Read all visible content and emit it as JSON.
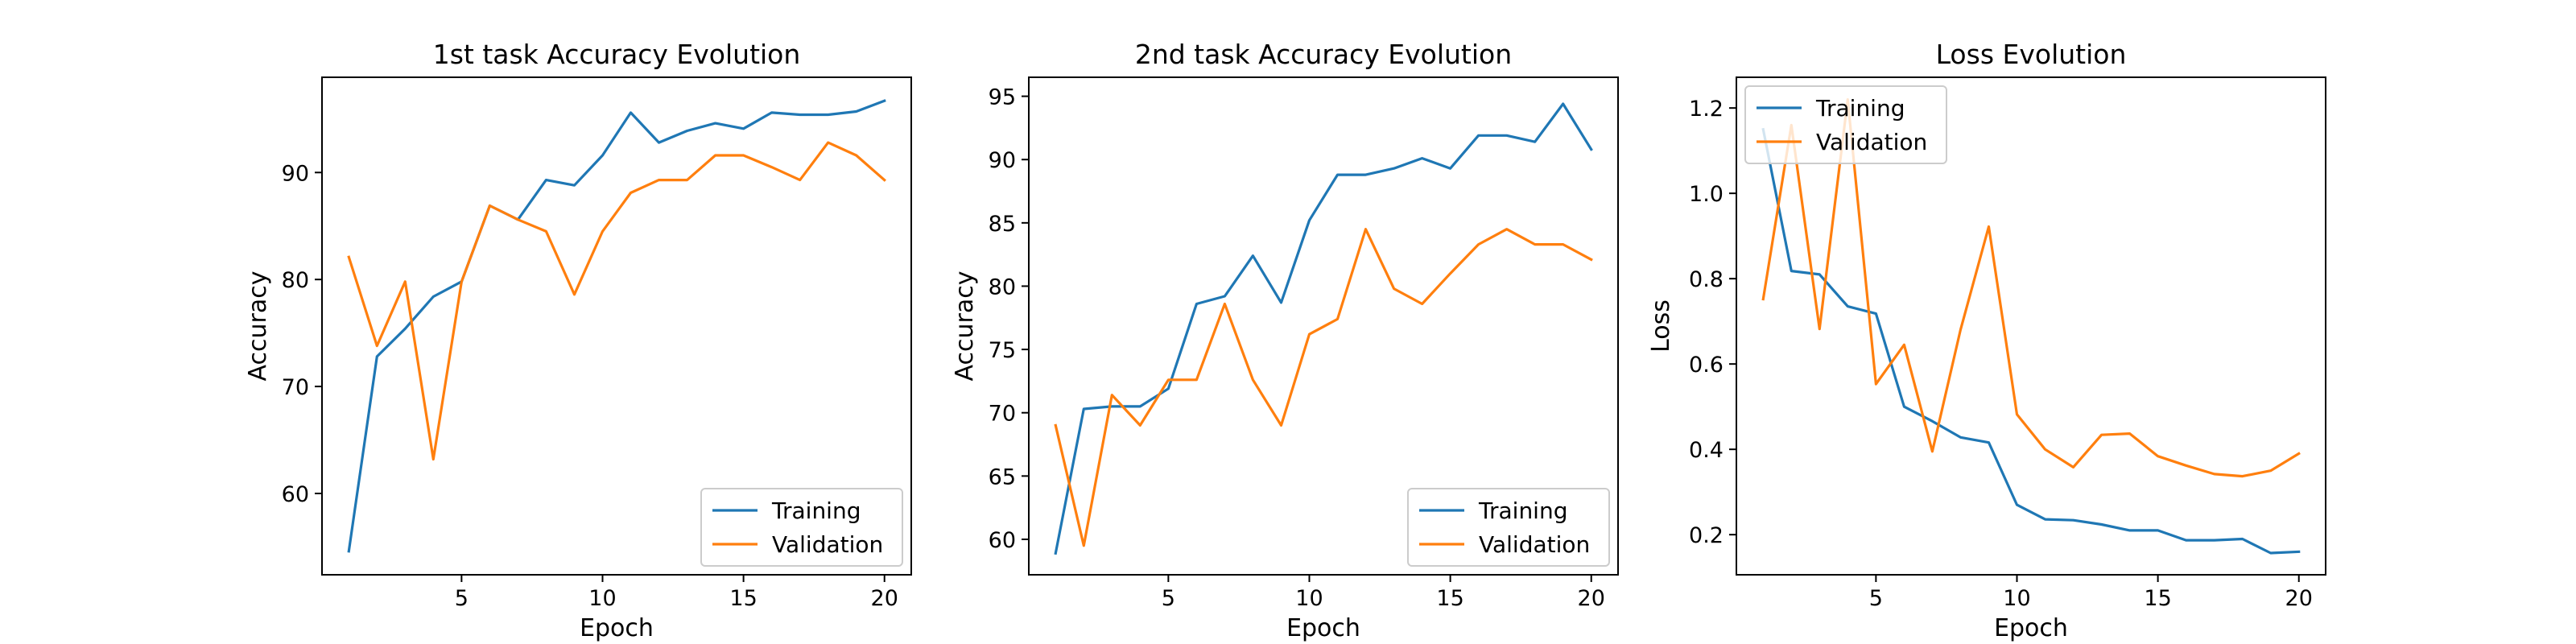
{
  "colors": {
    "training": "#1f77b4",
    "validation": "#ff7f0e"
  },
  "chart_data": [
    {
      "type": "line",
      "title": "1st task Accuracy Evolution",
      "xlabel": "Epoch",
      "ylabel": "Accuracy",
      "xlim": [
        0.05,
        20.95
      ],
      "ylim": [
        52.4,
        98.9
      ],
      "xticks": [
        5,
        10,
        15,
        20
      ],
      "yticks": [
        60,
        70,
        80,
        90
      ],
      "legend": "lower right",
      "x": [
        1,
        2,
        3,
        4,
        5,
        6,
        7,
        8,
        9,
        10,
        11,
        12,
        13,
        14,
        15,
        16,
        17,
        18,
        19,
        20
      ],
      "series": [
        {
          "name": "Training",
          "values": [
            54.6,
            72.8,
            75.4,
            78.4,
            79.8,
            86.9,
            85.6,
            89.3,
            88.8,
            91.6,
            95.6,
            92.8,
            93.9,
            94.6,
            94.1,
            95.6,
            95.4,
            95.4,
            95.7,
            96.7
          ]
        },
        {
          "name": "Validation",
          "values": [
            82.1,
            73.8,
            79.8,
            63.2,
            79.8,
            86.9,
            85.6,
            84.5,
            78.6,
            84.5,
            88.1,
            89.3,
            89.3,
            91.6,
            91.6,
            90.5,
            89.3,
            92.8,
            91.6,
            89.3
          ]
        }
      ]
    },
    {
      "type": "line",
      "title": "2nd task Accuracy Evolution",
      "xlabel": "Epoch",
      "ylabel": "Accuracy",
      "xlim": [
        0.05,
        20.95
      ],
      "ylim": [
        57.2,
        96.5
      ],
      "xticks": [
        5,
        10,
        15,
        20
      ],
      "yticks": [
        60,
        65,
        70,
        75,
        80,
        85,
        90,
        95
      ],
      "legend": "lower right",
      "x": [
        1,
        2,
        3,
        4,
        5,
        6,
        7,
        8,
        9,
        10,
        11,
        12,
        13,
        14,
        15,
        16,
        17,
        18,
        19,
        20
      ],
      "series": [
        {
          "name": "Training",
          "values": [
            58.9,
            70.3,
            70.5,
            70.5,
            71.9,
            78.6,
            79.2,
            82.4,
            78.7,
            85.2,
            88.8,
            88.8,
            89.3,
            90.1,
            89.3,
            91.9,
            91.9,
            91.4,
            94.4,
            90.8
          ]
        },
        {
          "name": "Validation",
          "values": [
            69.0,
            59.5,
            71.4,
            69.0,
            72.6,
            72.6,
            78.6,
            72.6,
            69.0,
            76.2,
            77.4,
            84.5,
            79.8,
            78.6,
            81.0,
            83.3,
            84.5,
            83.3,
            83.3,
            82.1
          ]
        }
      ]
    },
    {
      "type": "line",
      "title": "Loss Evolution",
      "xlabel": "Epoch",
      "ylabel": "Loss",
      "xlim": [
        0.05,
        20.95
      ],
      "ylim": [
        0.106,
        1.272
      ],
      "xticks": [
        5,
        10,
        15,
        20
      ],
      "yticks": [
        0.2,
        0.4,
        0.6,
        0.8,
        1.0,
        1.2
      ],
      "tick_labels_y": [
        "0.2",
        "0.4",
        "0.6",
        "0.8",
        "1.0",
        "1.2"
      ],
      "legend": "upper left",
      "x": [
        1,
        2,
        3,
        4,
        5,
        6,
        7,
        8,
        9,
        10,
        11,
        12,
        13,
        14,
        15,
        16,
        17,
        18,
        19,
        20
      ],
      "series": [
        {
          "name": "Training",
          "values": [
            1.15,
            0.818,
            0.81,
            0.735,
            0.718,
            0.5,
            0.466,
            0.428,
            0.416,
            0.27,
            0.236,
            0.234,
            0.224,
            0.21,
            0.21,
            0.187,
            0.187,
            0.19,
            0.157,
            0.16
          ]
        },
        {
          "name": "Validation",
          "values": [
            0.752,
            1.16,
            0.682,
            1.22,
            0.553,
            0.645,
            0.395,
            0.68,
            0.922,
            0.482,
            0.4,
            0.358,
            0.434,
            0.437,
            0.384,
            0.362,
            0.342,
            0.337,
            0.35,
            0.39
          ]
        }
      ]
    }
  ]
}
